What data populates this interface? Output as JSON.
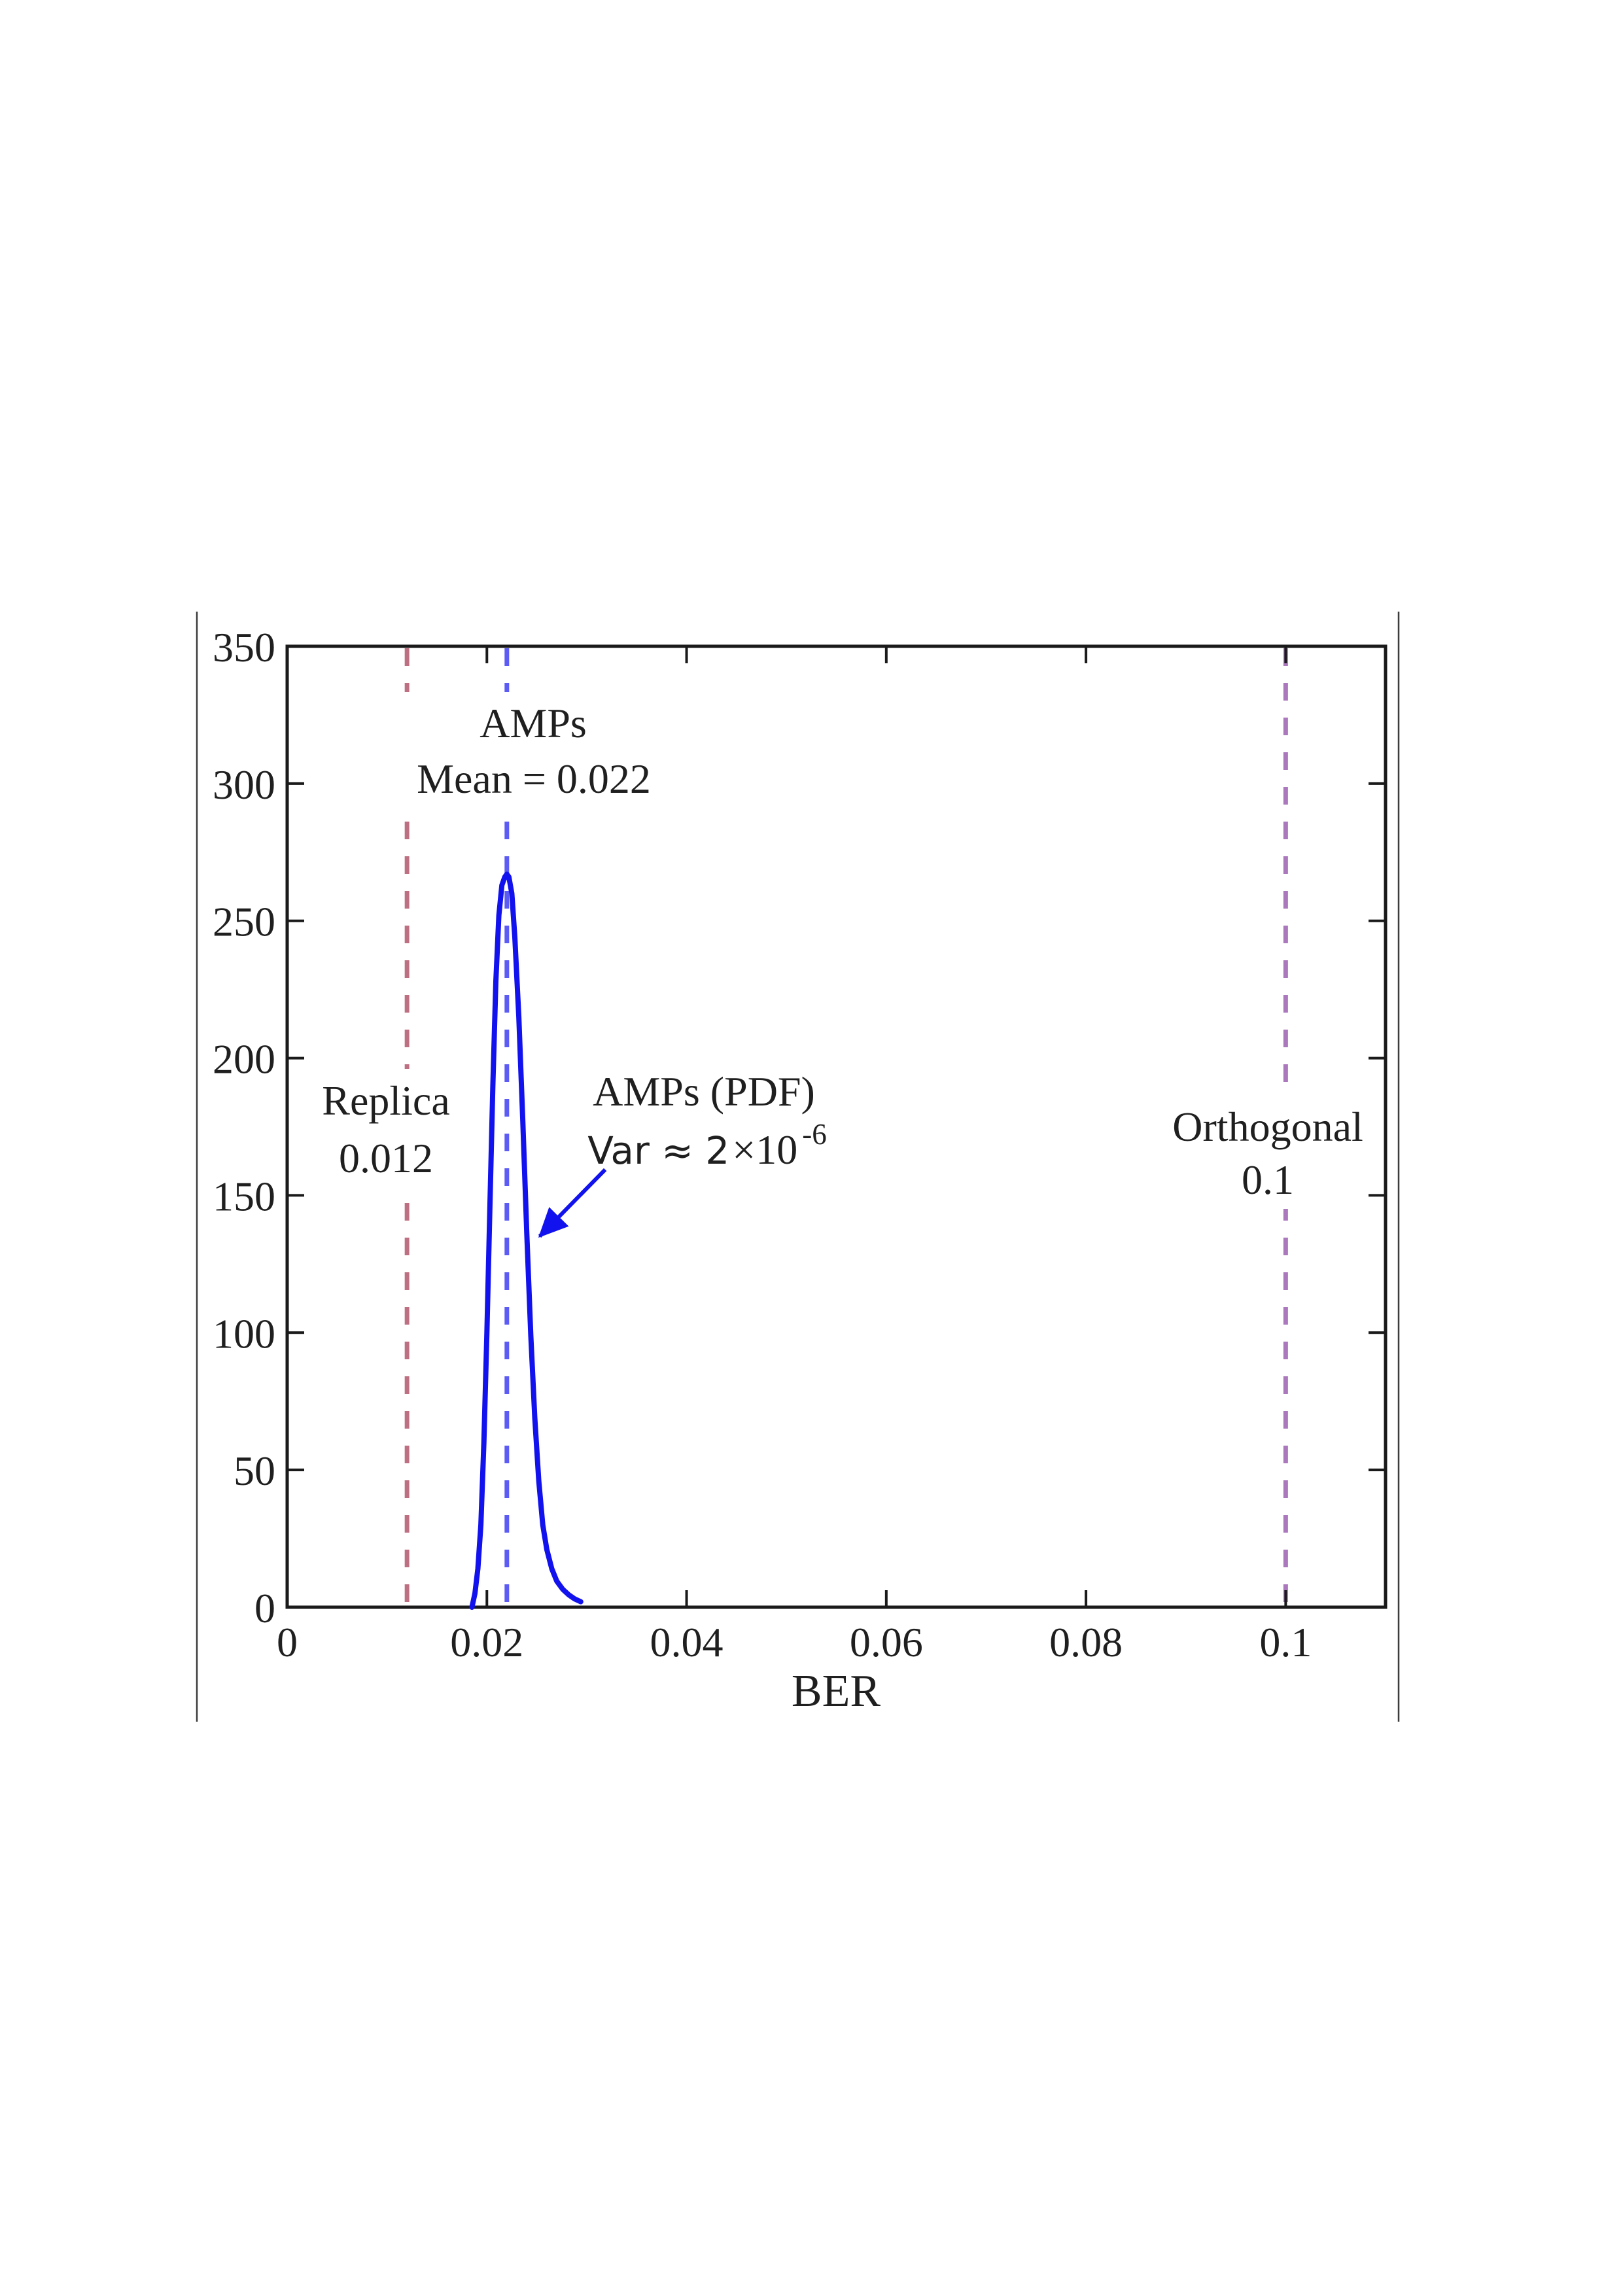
{
  "figure": {
    "background": "#ffffff",
    "axis_color": "#1a1a1a",
    "tick_label_color": "#1f1f1f",
    "page_border_color": "#3c3c3c"
  },
  "chart_data": {
    "type": "line",
    "title": "",
    "xlabel": "BER",
    "ylabel": "",
    "xlim": [
      0,
      0.11
    ],
    "ylim": [
      0,
      350
    ],
    "grid": false,
    "legend": "none",
    "x_ticks": [
      0,
      0.02,
      0.04,
      0.06,
      0.08,
      0.1
    ],
    "x_tick_labels": [
      "0",
      "0.02",
      "0.04",
      "0.06",
      "0.08",
      "0.1"
    ],
    "y_ticks": [
      0,
      50,
      100,
      150,
      200,
      250,
      300,
      350
    ],
    "y_tick_labels": [
      "0",
      "50",
      "100",
      "150",
      "200",
      "250",
      "300",
      "350"
    ],
    "series": [
      {
        "name": "AMPs (PDF)",
        "color": "#1212ee",
        "x": [
          0.0185,
          0.0188,
          0.0191,
          0.0194,
          0.0197,
          0.02,
          0.0203,
          0.0206,
          0.0209,
          0.0212,
          0.0215,
          0.0218,
          0.022,
          0.0222,
          0.0225,
          0.0228,
          0.0232,
          0.0236,
          0.024,
          0.0244,
          0.0248,
          0.0252,
          0.0256,
          0.026,
          0.0265,
          0.027,
          0.0276,
          0.0282,
          0.0288,
          0.0294
        ],
        "y": [
          0,
          5,
          14,
          30,
          60,
          100,
          146,
          190,
          228,
          252,
          263,
          266,
          267,
          266,
          260,
          244,
          215,
          177,
          136,
          99,
          69,
          46,
          30,
          21,
          14,
          9.5,
          6.5,
          4.5,
          3,
          2
        ]
      }
    ],
    "vlines": [
      {
        "name": "Replica",
        "x": 0.012,
        "style": "dashed",
        "color": "#be7083"
      },
      {
        "name": "AMPs mean",
        "x": 0.022,
        "style": "dashed",
        "color": "#5c5cf5"
      },
      {
        "name": "Orthogonal",
        "x": 0.1,
        "style": "dashed",
        "color": "#ab77bd"
      }
    ],
    "annotations": {
      "amps_mean": {
        "lines": [
          "AMPs",
          "Mean = 0.022"
        ],
        "color": "#1414e0",
        "x": 0.0247,
        "y": 312
      },
      "replica": {
        "lines": [
          "Replica",
          "0.012"
        ],
        "color": "#a21638",
        "x": 0.0099,
        "y": 174
      },
      "amps_pdf": {
        "label": "AMPs (PDF)",
        "color": "#1414e0",
        "x": 0.0417,
        "y": 188
      },
      "variance": {
        "prefix": "Var ≈ 2",
        "times": " ×10",
        "exp": "-6",
        "color": "#1414f0",
        "x": 0.0421,
        "y": 167
      },
      "orthogonal": {
        "lines": [
          "Orthogonal",
          "0.1"
        ],
        "color": "#7b2d8e",
        "x": 0.0982,
        "y": 165
      }
    },
    "arrow": {
      "from": {
        "x": 0.03185,
        "y": 159.4
      },
      "to": {
        "x": 0.02529,
        "y": 135.1
      },
      "color": "#1212ee"
    }
  }
}
